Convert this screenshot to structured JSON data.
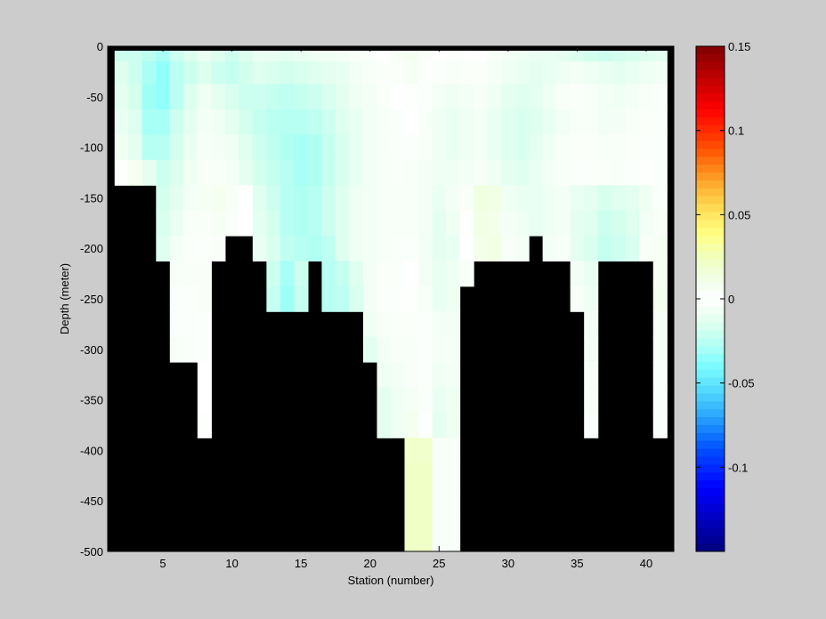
{
  "chart_data": {
    "type": "heatmap",
    "title": "",
    "xlabel": "Station (number)",
    "ylabel": "Depth (meter)",
    "xlim": [
      1,
      42
    ],
    "ylim": [
      -500,
      0
    ],
    "x_ticks": [
      5,
      10,
      15,
      20,
      25,
      30,
      35,
      40
    ],
    "y_ticks": [
      0,
      -50,
      -100,
      -150,
      -200,
      -250,
      -300,
      -350,
      -400,
      -450,
      -500
    ],
    "colorbar": {
      "range": [
        -0.15,
        0.15
      ],
      "ticks": [
        -0.1,
        -0.05,
        0,
        0.05,
        0.1,
        0.15
      ],
      "tick_labels": [
        "-0.1",
        "-0.05",
        "0",
        "0.05",
        "0.1",
        "0.15"
      ],
      "colormap": "jet"
    },
    "masked_color": "#000000",
    "stations": [
      2,
      3,
      4,
      5,
      6,
      7,
      8,
      9,
      10,
      11,
      12,
      13,
      14,
      15,
      16,
      17,
      18,
      19,
      20,
      21,
      22,
      23,
      24,
      25,
      26,
      27,
      28,
      29,
      30,
      31,
      32,
      33,
      34,
      35,
      36,
      37,
      38,
      39,
      40,
      41
    ],
    "depths": [
      -5,
      -25,
      -50,
      -75,
      -100,
      -125,
      -150,
      -175,
      -200,
      -225,
      -250,
      -275,
      -300,
      -325,
      -350,
      -375,
      -400,
      -425,
      -450,
      -475,
      -500
    ],
    "bottom_depth": [
      -125,
      -125,
      -125,
      -200,
      -300,
      -300,
      -400,
      -200,
      -200,
      -150,
      -150,
      -200,
      -250,
      -250,
      -200,
      -200,
      -250,
      -250,
      -300,
      -400,
      -500,
      -500,
      -500,
      -500,
      -400,
      -250,
      -250,
      -200,
      -200,
      -200,
      -150,
      -150,
      -250,
      -250,
      -400,
      -300,
      -200,
      -200,
      -250,
      -400
    ],
    "values": [
      [
        -0.02,
        -0.02,
        -0.025,
        -0.03,
        -0.02,
        -0.015,
        -0.01,
        -0.015,
        -0.02,
        -0.015,
        -0.01,
        -0.01,
        -0.012,
        -0.01,
        -0.008,
        -0.008,
        -0.006,
        -0.004,
        -0.002,
        0.0,
        0.005,
        0.008,
        0.003,
        0.0,
        0.002,
        0.002,
        0.0,
        -0.004,
        -0.006,
        -0.008,
        -0.01,
        -0.01,
        -0.012,
        -0.015,
        -0.018,
        -0.02,
        -0.018,
        -0.016,
        -0.014,
        -0.012
      ],
      [
        -0.015,
        -0.02,
        -0.03,
        -0.035,
        -0.025,
        -0.02,
        -0.015,
        -0.02,
        -0.022,
        -0.018,
        -0.014,
        -0.016,
        -0.018,
        -0.016,
        -0.014,
        -0.012,
        -0.01,
        -0.006,
        -0.004,
        -0.002,
        0.003,
        0.006,
        0.002,
        -0.002,
        -0.004,
        -0.003,
        -0.002,
        -0.005,
        -0.008,
        -0.01,
        -0.012,
        -0.01,
        -0.008,
        -0.006,
        -0.008,
        -0.01,
        -0.012,
        -0.01,
        -0.008,
        -0.006
      ],
      [
        -0.012,
        -0.018,
        -0.032,
        -0.035,
        -0.025,
        -0.015,
        -0.008,
        -0.012,
        -0.016,
        -0.02,
        -0.02,
        -0.022,
        -0.024,
        -0.022,
        -0.02,
        -0.016,
        -0.012,
        -0.008,
        -0.006,
        -0.003,
        0.0,
        0.002,
        -0.002,
        -0.006,
        -0.008,
        -0.006,
        -0.004,
        -0.008,
        -0.012,
        -0.014,
        -0.012,
        -0.008,
        -0.004,
        -0.002,
        -0.004,
        -0.006,
        -0.008,
        -0.006,
        -0.004,
        -0.002
      ],
      [
        -0.01,
        -0.015,
        -0.03,
        -0.03,
        -0.02,
        -0.012,
        -0.006,
        -0.008,
        -0.012,
        -0.018,
        -0.022,
        -0.025,
        -0.026,
        -0.026,
        -0.024,
        -0.02,
        -0.014,
        -0.01,
        -0.006,
        -0.004,
        -0.002,
        0.0,
        -0.004,
        -0.008,
        -0.01,
        -0.008,
        -0.006,
        -0.01,
        -0.014,
        -0.016,
        -0.014,
        -0.01,
        -0.006,
        -0.004,
        -0.004,
        -0.006,
        -0.006,
        -0.004,
        -0.003,
        -0.002
      ],
      [
        -0.008,
        -0.012,
        -0.026,
        -0.026,
        -0.018,
        -0.01,
        -0.005,
        -0.006,
        -0.008,
        -0.014,
        -0.02,
        -0.024,
        -0.028,
        -0.03,
        -0.028,
        -0.022,
        -0.016,
        -0.01,
        -0.006,
        -0.004,
        -0.002,
        -0.002,
        -0.004,
        -0.008,
        -0.01,
        -0.008,
        -0.006,
        -0.01,
        -0.014,
        -0.016,
        -0.012,
        -0.008,
        -0.004,
        -0.003,
        -0.003,
        -0.004,
        -0.004,
        -0.003,
        -0.002,
        -0.002
      ],
      [
        0.002,
        0.008,
        -0.012,
        -0.02,
        -0.015,
        -0.008,
        -0.004,
        -0.004,
        -0.006,
        -0.012,
        -0.018,
        -0.022,
        -0.026,
        -0.03,
        -0.028,
        -0.022,
        -0.016,
        -0.01,
        -0.006,
        -0.004,
        -0.003,
        -0.004,
        -0.006,
        -0.008,
        -0.008,
        -0.006,
        -0.004,
        -0.008,
        -0.012,
        -0.014,
        -0.01,
        -0.006,
        -0.004,
        -0.002,
        -0.002,
        -0.003,
        -0.004,
        -0.002,
        -0.001,
        -0.002
      ],
      [
        null,
        null,
        null,
        -0.018,
        -0.012,
        -0.006,
        0.006,
        0.008,
        -0.004,
        0.0,
        -0.014,
        -0.02,
        -0.026,
        -0.028,
        -0.026,
        -0.02,
        -0.014,
        -0.008,
        -0.006,
        -0.004,
        -0.004,
        -0.004,
        -0.006,
        -0.01,
        -0.006,
        0.004,
        0.014,
        0.012,
        -0.008,
        -0.01,
        -0.01,
        -0.008,
        -0.006,
        -0.01,
        -0.012,
        -0.016,
        -0.014,
        -0.012,
        -0.008,
        -0.002
      ],
      [
        null,
        null,
        null,
        -0.016,
        -0.01,
        -0.004,
        0.004,
        0.006,
        -0.002,
        0.0,
        -0.012,
        -0.018,
        -0.026,
        -0.028,
        -0.026,
        -0.02,
        -0.014,
        -0.008,
        -0.006,
        -0.004,
        -0.004,
        -0.004,
        -0.006,
        -0.012,
        -0.008,
        0.002,
        0.012,
        0.01,
        -0.006,
        -0.008,
        -0.01,
        -0.008,
        -0.006,
        -0.012,
        -0.014,
        -0.02,
        -0.018,
        -0.014,
        -0.006,
        0.004
      ],
      [
        null,
        null,
        null,
        -0.014,
        -0.006,
        -0.002,
        0.002,
        0.004,
        null,
        null,
        -0.01,
        -0.016,
        -0.024,
        -0.026,
        -0.028,
        -0.024,
        -0.014,
        -0.008,
        -0.006,
        -0.004,
        -0.003,
        -0.002,
        -0.006,
        -0.012,
        -0.01,
        0.0,
        0.01,
        0.012,
        -0.004,
        -0.006,
        null,
        -0.006,
        -0.004,
        -0.012,
        -0.016,
        -0.022,
        -0.02,
        -0.016,
        -0.004,
        0.006
      ],
      [
        null,
        null,
        null,
        null,
        -0.004,
        0.004,
        0.004,
        null,
        null,
        null,
        null,
        -0.02,
        -0.03,
        -0.02,
        null,
        -0.026,
        -0.022,
        -0.014,
        -0.006,
        -0.003,
        -0.002,
        0.0,
        -0.006,
        -0.01,
        -0.008,
        -0.004,
        null,
        null,
        null,
        null,
        null,
        null,
        null,
        -0.006,
        -0.01,
        null,
        null,
        null,
        null,
        0.006
      ],
      [
        null,
        null,
        null,
        null,
        -0.002,
        0.002,
        0.004,
        null,
        null,
        null,
        null,
        -0.022,
        -0.032,
        -0.022,
        null,
        -0.026,
        -0.024,
        -0.016,
        -0.006,
        -0.002,
        -0.001,
        0.002,
        -0.004,
        -0.01,
        -0.008,
        null,
        null,
        null,
        null,
        null,
        null,
        null,
        null,
        -0.004,
        -0.008,
        null,
        null,
        null,
        null,
        0.008
      ],
      [
        null,
        null,
        null,
        null,
        -0.002,
        -0.002,
        0.002,
        null,
        null,
        null,
        null,
        null,
        null,
        null,
        null,
        null,
        null,
        null,
        -0.008,
        -0.004,
        -0.003,
        0.003,
        -0.002,
        -0.006,
        -0.006,
        null,
        null,
        null,
        null,
        null,
        null,
        null,
        null,
        null,
        -0.006,
        null,
        null,
        null,
        null,
        -0.004
      ],
      [
        null,
        null,
        null,
        null,
        -0.004,
        -0.002,
        -0.001,
        null,
        null,
        null,
        null,
        null,
        null,
        null,
        null,
        null,
        null,
        null,
        -0.012,
        -0.006,
        -0.004,
        0.004,
        -0.002,
        -0.006,
        -0.005,
        null,
        null,
        null,
        null,
        null,
        null,
        null,
        null,
        null,
        -0.006,
        null,
        null,
        null,
        null,
        -0.004
      ],
      [
        null,
        null,
        null,
        null,
        null,
        null,
        0.0,
        null,
        null,
        null,
        null,
        null,
        null,
        null,
        null,
        null,
        null,
        null,
        null,
        -0.008,
        -0.006,
        0.004,
        -0.002,
        -0.008,
        -0.006,
        null,
        null,
        null,
        null,
        null,
        null,
        null,
        null,
        null,
        -0.004,
        null,
        null,
        null,
        null,
        -0.002
      ],
      [
        null,
        null,
        null,
        null,
        null,
        null,
        0.0,
        null,
        null,
        null,
        null,
        null,
        null,
        null,
        null,
        null,
        null,
        null,
        null,
        -0.012,
        -0.008,
        0.006,
        -0.002,
        -0.01,
        -0.008,
        null,
        null,
        null,
        null,
        null,
        null,
        null,
        null,
        null,
        -0.004,
        null,
        null,
        null,
        null,
        -0.002
      ],
      [
        null,
        null,
        null,
        null,
        null,
        null,
        0.002,
        null,
        null,
        null,
        null,
        null,
        null,
        null,
        null,
        null,
        null,
        null,
        null,
        -0.012,
        -0.008,
        0.008,
        -0.001,
        -0.012,
        -0.008,
        null,
        null,
        null,
        null,
        null,
        null,
        null,
        null,
        null,
        -0.002,
        null,
        null,
        null,
        null,
        -0.002
      ],
      [
        null,
        null,
        null,
        null,
        null,
        null,
        null,
        null,
        null,
        null,
        null,
        null,
        null,
        null,
        null,
        null,
        null,
        null,
        null,
        null,
        null,
        0.02,
        0.02,
        -0.004,
        -0.004,
        null,
        null,
        null,
        null,
        null,
        null,
        null,
        null,
        null,
        null,
        null,
        null,
        null,
        null,
        null
      ],
      [
        null,
        null,
        null,
        null,
        null,
        null,
        null,
        null,
        null,
        null,
        null,
        null,
        null,
        null,
        null,
        null,
        null,
        null,
        null,
        null,
        null,
        0.022,
        0.022,
        -0.004,
        -0.004,
        null,
        null,
        null,
        null,
        null,
        null,
        null,
        null,
        null,
        null,
        null,
        null,
        null,
        null,
        null
      ],
      [
        null,
        null,
        null,
        null,
        null,
        null,
        null,
        null,
        null,
        null,
        null,
        null,
        null,
        null,
        null,
        null,
        null,
        null,
        null,
        null,
        null,
        0.022,
        0.022,
        -0.004,
        -0.004,
        null,
        null,
        null,
        null,
        null,
        null,
        null,
        null,
        null,
        null,
        null,
        null,
        null,
        null,
        null
      ],
      [
        null,
        null,
        null,
        null,
        null,
        null,
        null,
        null,
        null,
        null,
        null,
        null,
        null,
        null,
        null,
        null,
        null,
        null,
        null,
        null,
        null,
        0.022,
        0.022,
        -0.004,
        -0.004,
        null,
        null,
        null,
        null,
        null,
        null,
        null,
        null,
        null,
        null,
        null,
        null,
        null,
        null,
        null
      ],
      [
        null,
        null,
        null,
        null,
        null,
        null,
        null,
        null,
        null,
        null,
        null,
        null,
        null,
        null,
        null,
        null,
        null,
        null,
        null,
        null,
        null,
        0.022,
        0.022,
        -0.004,
        -0.004,
        null,
        null,
        null,
        null,
        null,
        null,
        null,
        null,
        null,
        null,
        null,
        null,
        null,
        null,
        null
      ]
    ]
  }
}
